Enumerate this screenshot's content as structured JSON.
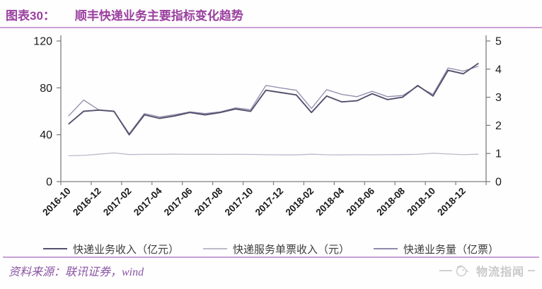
{
  "header": {
    "label": "图表30：",
    "title": "顺丰快递业务主要指标变化趋势"
  },
  "chart_data": {
    "type": "line",
    "title": "顺丰快递业务主要指标变化趋势",
    "x": [
      "2016-10",
      "2016-11",
      "2016-12",
      "2017-01",
      "2017-02",
      "2017-03",
      "2017-04",
      "2017-05",
      "2017-06",
      "2017-07",
      "2017-08",
      "2017-09",
      "2017-10",
      "2017-11",
      "2017-12",
      "2018-01",
      "2018-02",
      "2018-03",
      "2018-04",
      "2018-05",
      "2018-06",
      "2018-07",
      "2018-08",
      "2018-09",
      "2018-10",
      "2018-11",
      "2018-12",
      "2019-01"
    ],
    "x_tick_labels": [
      "2016-10",
      "2016-12",
      "2017-02",
      "2017-04",
      "2017-06",
      "2017-08",
      "2017-10",
      "2017-12",
      "2018-02",
      "2018-04",
      "2018-06",
      "2018-08",
      "2018-10",
      "2018-12"
    ],
    "series": [
      {
        "name": "快递业务收入（亿元）",
        "axis": "left",
        "color": "#55516d",
        "values": [
          49,
          60,
          61,
          60,
          40,
          57,
          54,
          56,
          59,
          57,
          59,
          62,
          60,
          78,
          76,
          74,
          59,
          73,
          68,
          69,
          75,
          70,
          72,
          82,
          73,
          95,
          92,
          101
        ]
      },
      {
        "name": "快递服务单票收入（元）",
        "axis": "left",
        "color": "#bcbacb",
        "values": [
          22.1,
          22.4,
          23.4,
          24.5,
          23.1,
          23.3,
          23.3,
          23.4,
          23.3,
          23.3,
          23.2,
          23.3,
          23.2,
          23.0,
          22.8,
          22.8,
          23.4,
          22.9,
          22.8,
          23.0,
          22.9,
          23.0,
          23.1,
          23.3,
          24.2,
          23.6,
          23.0,
          23.4
        ]
      },
      {
        "name": "快递业务量（亿票）",
        "axis": "right",
        "color": "#8f8bab",
        "values": [
          2.33,
          2.9,
          2.55,
          2.5,
          1.7,
          2.42,
          2.3,
          2.38,
          2.48,
          2.42,
          2.48,
          2.62,
          2.56,
          3.42,
          3.33,
          3.25,
          2.6,
          3.27,
          3.1,
          3.02,
          3.21,
          3.02,
          3.06,
          3.39,
          3.1,
          4.04,
          3.93,
          4.1
        ]
      }
    ],
    "left_axis": {
      "min": 0,
      "max": 120,
      "ticks": [
        0,
        40,
        80,
        120
      ]
    },
    "right_axis": {
      "min": 0,
      "max": 5,
      "ticks": [
        0,
        1,
        2,
        3,
        4,
        5
      ]
    },
    "grid": false,
    "legend_position": "bottom"
  },
  "footer": {
    "source": "资料来源：联讯证券，wind",
    "watermark": "物流指闻"
  },
  "colors": {
    "title": "#9a3f9f",
    "rule": "#c9a0d6",
    "axis": "#7f7f7f",
    "tick_text": "#1a1a1a"
  }
}
